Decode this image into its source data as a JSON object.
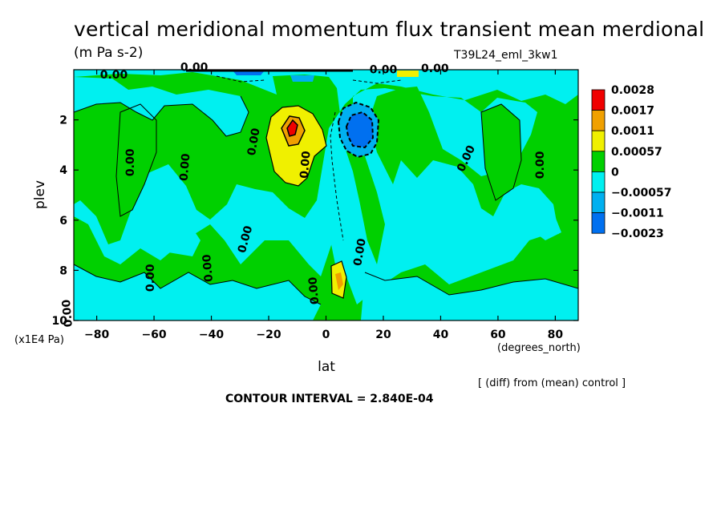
{
  "header": {
    "title": "vertical meridional momentum flux transient mean merdional",
    "units": "(m Pa s-2)",
    "experiment": "T39L24_eml_3kw1"
  },
  "footer": {
    "diff_note": "[ (diff) from (mean) control ]",
    "contour_interval": "CONTOUR INTERVAL = 2.840E-04"
  },
  "colorbar": {
    "labels": [
      "0.0028",
      "0.0017",
      "0.0011",
      "0.00057",
      "0",
      "−0.00057",
      "−0.0011",
      "−0.0023"
    ],
    "colors": [
      "#f00000",
      "#f0a000",
      "#f0f000",
      "#00d000",
      "#00f0f0",
      "#00b0f0",
      "#0070f0"
    ]
  },
  "chart_data": {
    "type": "heatmap",
    "xlabel": "lat",
    "ylabel": "plev",
    "x_unit_label": "(degrees_north)",
    "y_unit_label": "(x1E4 Pa)",
    "xlim": [
      -88,
      88
    ],
    "ylim": [
      10,
      0
    ],
    "x_ticks": [
      -80,
      -60,
      -40,
      -20,
      0,
      20,
      40,
      60,
      80
    ],
    "y_ticks": [
      2,
      4,
      6,
      8,
      10
    ],
    "contour_labels": [
      "0.00",
      "0.00",
      "0.00",
      "0.00",
      "0.00",
      "0.00",
      "0.00",
      "0.00",
      "0.00",
      "0.00",
      "0.00",
      "0.00",
      "0.00",
      "0.00",
      "0.00",
      "0.00"
    ],
    "features": [
      {
        "kind": "positive_max",
        "lat": -13,
        "plev": 2.5,
        "value": 0.0028
      },
      {
        "kind": "negative_min",
        "lat": 12,
        "plev": 2.5,
        "value": -0.0023
      },
      {
        "kind": "positive_max",
        "lat": 4,
        "plev": 8.4,
        "value": 0.0017
      },
      {
        "kind": "positive_max",
        "lat": 30,
        "plev": 0.2,
        "value": 0.00057
      }
    ]
  }
}
